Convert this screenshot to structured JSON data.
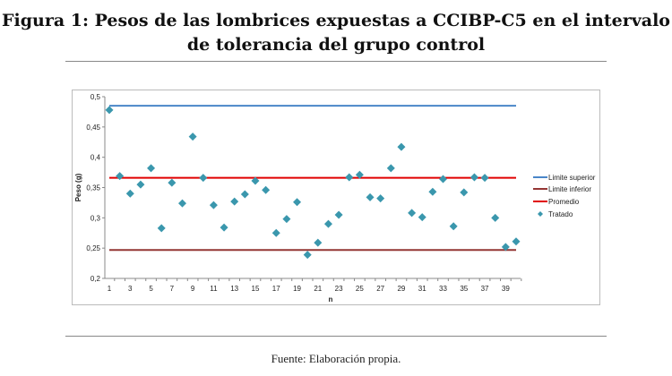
{
  "title_line1": "Figura 1: Pesos de las lombrices expuestas a CCIBP-C5 en el intervalo",
  "title_line2": "de tolerancia del grupo control",
  "source": "Fuente: Elaboración propia.",
  "chart_data": {
    "type": "scatter",
    "xlabel": "n",
    "ylabel": "Peso (g)",
    "ylim": [
      0.2,
      0.5
    ],
    "yticks": [
      "0,2",
      "0,25",
      "0,3",
      "0,35",
      "0,4",
      "0,45",
      "0,5"
    ],
    "xticks": [
      "1",
      "3",
      "5",
      "7",
      "9",
      "11",
      "13",
      "15",
      "17",
      "19",
      "21",
      "23",
      "25",
      "27",
      "29",
      "31",
      "33",
      "35",
      "37",
      "39"
    ],
    "grid": false,
    "legend_placement": "right",
    "series": [
      {
        "name": "Limite superior",
        "type": "line",
        "color": "#4a86c8",
        "value": 0.485
      },
      {
        "name": "Limite inferior",
        "type": "line",
        "color": "#943634",
        "value": 0.247
      },
      {
        "name": "Promedio",
        "type": "line",
        "color": "#e00000",
        "value": 0.366
      },
      {
        "name": "Tratado",
        "type": "scatter",
        "color": "#3a97ad",
        "x": [
          1,
          2,
          3,
          4,
          5,
          6,
          7,
          8,
          9,
          10,
          11,
          12,
          13,
          14,
          15,
          16,
          17,
          18,
          19,
          20,
          21,
          22,
          23,
          24,
          25,
          26,
          27,
          28,
          29,
          30,
          31,
          32,
          33,
          34,
          35,
          36,
          37,
          38,
          39,
          40
        ],
        "values": [
          0.478,
          0.369,
          0.34,
          0.355,
          0.382,
          0.283,
          0.358,
          0.324,
          0.434,
          0.366,
          0.321,
          0.284,
          0.327,
          0.339,
          0.361,
          0.346,
          0.275,
          0.298,
          0.326,
          0.239,
          0.259,
          0.29,
          0.305,
          0.367,
          0.371,
          0.334,
          0.332,
          0.382,
          0.417,
          0.308,
          0.301,
          0.343,
          0.364,
          0.286,
          0.342,
          0.367,
          0.366,
          0.3,
          0.252,
          0.261
        ]
      }
    ]
  }
}
